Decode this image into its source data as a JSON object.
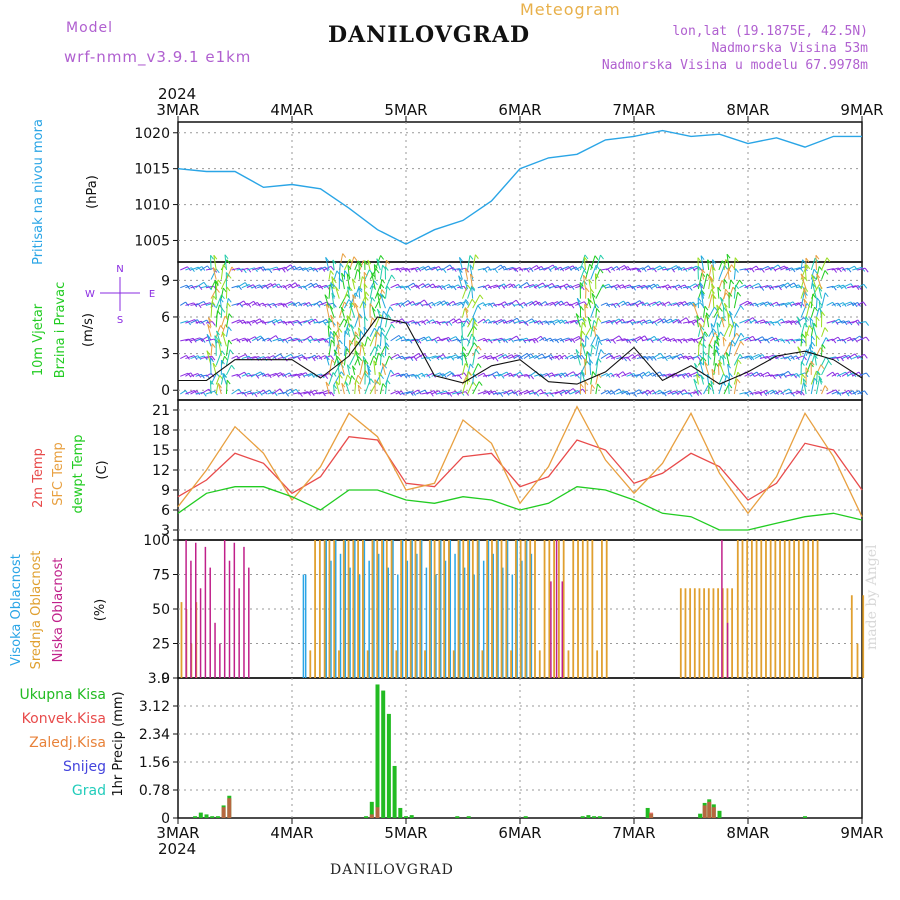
{
  "header": {
    "model_label": "Model",
    "model_name": "wrf-nmm_v3.9.1 e1km",
    "title": "DANILOVGRAD",
    "subtitle": "Meteogram",
    "lonlat": "lon,lat (19.1875E, 42.5N)",
    "altitude": "Nadmorska Visina 53m",
    "model_altitude": "Nadmorska Visina u modelu 67.9978m"
  },
  "footer": {
    "location": "DANILOVGRAD",
    "credit": "made by Angel"
  },
  "colors": {
    "pressure": "#2aa5e6",
    "wind_title": "#22cc22",
    "wind_calm": "#8a2be2",
    "temp2m": "#e84b4b",
    "sfc_temp": "#e8a040",
    "dewpt": "#22cc22",
    "cloud_high": "#2aa5e6",
    "cloud_mid": "#e0a030",
    "cloud_low": "#c0208a",
    "precip_total": "#22bb22",
    "precip_conv": "#e84b4b",
    "precip_frz": "#e8823a",
    "precip_snow": "#4444dd",
    "precip_hail": "#22ccbb"
  },
  "chart_data": [
    {
      "type": "line",
      "panel": "pressure",
      "ylabel_lines": [
        "Pritisak na nivou mora",
        "(hPa)"
      ],
      "x_ticks": [
        "3MAR",
        "4MAR",
        "5MAR",
        "6MAR",
        "7MAR",
        "8MAR",
        "9MAR"
      ],
      "x_year": "2024",
      "yticks": [
        1005,
        1010,
        1015,
        1020
      ],
      "ylim": [
        1002,
        1021.5
      ],
      "grid": true,
      "x": [
        0,
        0.25,
        0.5,
        0.75,
        1,
        1.25,
        1.5,
        1.75,
        2,
        2.25,
        2.5,
        2.75,
        3,
        3.25,
        3.5,
        3.75,
        4,
        4.25,
        4.5,
        4.75,
        5,
        5.25,
        5.5,
        5.75,
        6
      ],
      "values": [
        1015.0,
        1014.6,
        1014.6,
        1012.4,
        1012.8,
        1012.2,
        1009.5,
        1006.5,
        1004.5,
        1006.5,
        1007.8,
        1010.5,
        1015.0,
        1016.5,
        1017.0,
        1019.0,
        1019.5,
        1020.3,
        1019.5,
        1019.8,
        1018.5,
        1019.3,
        1018.0,
        1019.5,
        1019.5
      ]
    },
    {
      "type": "line",
      "panel": "wind",
      "ylabel_lines": [
        "10m Vjetar",
        "Brzina i Pravac",
        "(m/s)"
      ],
      "compass_labels": [
        "N",
        "W",
        "E",
        "S"
      ],
      "yticks": [
        0,
        3,
        6,
        9
      ],
      "ylim": [
        -0.8,
        10.5
      ],
      "grid": true,
      "x": [
        0,
        0.25,
        0.5,
        0.75,
        1,
        1.25,
        1.5,
        1.75,
        2,
        2.25,
        2.5,
        2.75,
        3,
        3.25,
        3.5,
        3.75,
        4,
        4.25,
        4.5,
        4.75,
        5,
        5.25,
        5.5,
        5.75,
        6
      ],
      "values": [
        0.8,
        0.8,
        2.5,
        2.5,
        2.5,
        1.0,
        2.8,
        6.0,
        5.5,
        1.2,
        0.6,
        2.0,
        2.5,
        0.7,
        0.5,
        1.5,
        3.5,
        0.8,
        2.0,
        0.5,
        1.5,
        2.8,
        3.2,
        2.5,
        1.0
      ]
    },
    {
      "type": "line",
      "panel": "temperature",
      "ylabel_lines": [
        "2m Temp",
        "SFC Temp",
        "dewpt Temp",
        "(C)"
      ],
      "yticks": [
        3,
        6,
        9,
        12,
        15,
        18,
        21
      ],
      "ylim": [
        1.5,
        22.5
      ],
      "grid": true,
      "x": [
        0,
        0.25,
        0.5,
        0.75,
        1,
        1.25,
        1.5,
        1.75,
        2,
        2.25,
        2.5,
        2.75,
        3,
        3.25,
        3.5,
        3.75,
        4,
        4.25,
        4.5,
        4.75,
        5,
        5.25,
        5.5,
        5.75,
        6
      ],
      "series": [
        {
          "name": "2m Temp",
          "values": [
            8.0,
            10.5,
            14.5,
            13.0,
            8.5,
            11.0,
            17.0,
            16.5,
            10.0,
            9.5,
            14.0,
            14.5,
            9.5,
            11.0,
            16.5,
            15.0,
            10.0,
            11.5,
            14.5,
            12.5,
            7.5,
            10.0,
            16.0,
            15.0,
            9.0
          ]
        },
        {
          "name": "SFC Temp",
          "values": [
            6.5,
            12.0,
            18.5,
            14.5,
            7.5,
            12.5,
            20.5,
            17.0,
            9.0,
            10.0,
            19.5,
            16.0,
            7.0,
            12.5,
            21.5,
            13.5,
            8.5,
            13.0,
            20.5,
            11.5,
            5.5,
            11.0,
            20.5,
            14.0,
            5.0
          ]
        },
        {
          "name": "dewpt Temp",
          "values": [
            5.5,
            8.5,
            9.5,
            9.5,
            8.0,
            6.0,
            9.0,
            9.0,
            7.5,
            7.0,
            8.0,
            7.5,
            6.0,
            7.0,
            9.5,
            9.0,
            7.5,
            5.5,
            5.0,
            3.0,
            3.0,
            4.0,
            5.0,
            5.5,
            4.5
          ]
        }
      ]
    },
    {
      "type": "bar",
      "panel": "clouds",
      "ylabel_lines": [
        "Visoka Oblacnost",
        "Srednja Oblacnost",
        "Niska Oblacnost",
        "(%)"
      ],
      "yticks": [
        0,
        25,
        50,
        75,
        100
      ],
      "ylim": [
        0,
        100
      ],
      "grid": true,
      "series": [
        {
          "name": "Visoka Oblacnost",
          "segments": [
            {
              "from": 1.1,
              "to": 1.12,
              "values": [
                75
              ]
            },
            {
              "from": 1.3,
              "to": 3.1,
              "values": [
                100,
                85,
                100,
                90,
                100,
                80,
                100,
                75
              ]
            }
          ]
        },
        {
          "name": "Srednja Oblacnost",
          "segments": [
            {
              "from": 0.02,
              "to": 0.15,
              "values": [
                55,
                50,
                25
              ]
            },
            {
              "from": 1.15,
              "to": 3.75,
              "values": [
                20,
                100,
                100,
                100,
                100,
                100
              ]
            },
            {
              "from": 4.4,
              "to": 4.85,
              "values": [
                65
              ]
            },
            {
              "from": 4.9,
              "to": 5.6,
              "values": [
                100,
                100,
                100
              ]
            },
            {
              "from": 5.9,
              "to": 6.0,
              "values": [
                60,
                25
              ]
            }
          ]
        },
        {
          "name": "Niska Oblacnost",
          "segments": [
            {
              "from": 0.05,
              "to": 0.6,
              "values": [
                100,
                85,
                98,
                65,
                95,
                80,
                40,
                25
              ]
            },
            {
              "from": 3.25,
              "to": 3.35,
              "values": [
                70,
                100
              ]
            },
            {
              "from": 4.75,
              "to": 4.8,
              "values": [
                100,
                40
              ]
            }
          ]
        }
      ]
    },
    {
      "type": "bar",
      "panel": "precipitation",
      "ylabel_lines": [
        "1hr Precip (mm)"
      ],
      "legend": [
        "Ukupna Kisa",
        "Konvek.Kisa",
        "Zaledj.Kisa",
        "Snijeg",
        "Grad"
      ],
      "yticks": [
        0,
        0.78,
        1.56,
        2.34,
        3.12,
        3.9
      ],
      "ylim": [
        0,
        3.9
      ],
      "grid": true,
      "series": [
        {
          "name": "Ukupna Kisa",
          "x": [
            0.15,
            0.2,
            0.25,
            0.3,
            0.35,
            0.4,
            0.45,
            1.65,
            1.7,
            1.75,
            1.8,
            1.85,
            1.9,
            1.95,
            2.0,
            2.05,
            2.45,
            2.55,
            3.05,
            3.55,
            3.6,
            3.65,
            3.7,
            4.12,
            4.15,
            4.58,
            4.62,
            4.66,
            4.7,
            4.75,
            5.5
          ],
          "values": [
            0.05,
            0.15,
            0.1,
            0.05,
            0.05,
            0.35,
            0.62,
            0.05,
            0.45,
            3.72,
            3.55,
            2.9,
            1.45,
            0.28,
            0.05,
            0.08,
            0.05,
            0.05,
            0.05,
            0.05,
            0.08,
            0.05,
            0.05,
            0.28,
            0.12,
            0.12,
            0.42,
            0.52,
            0.38,
            0.2,
            0.05
          ]
        },
        {
          "name": "Konvek.Kisa",
          "x": [
            0.4,
            0.45,
            1.7,
            1.75,
            4.15,
            4.62,
            4.66,
            4.7
          ],
          "values": [
            0.3,
            0.55,
            0.1,
            0.3,
            0.15,
            0.35,
            0.45,
            0.3
          ]
        }
      ]
    }
  ]
}
